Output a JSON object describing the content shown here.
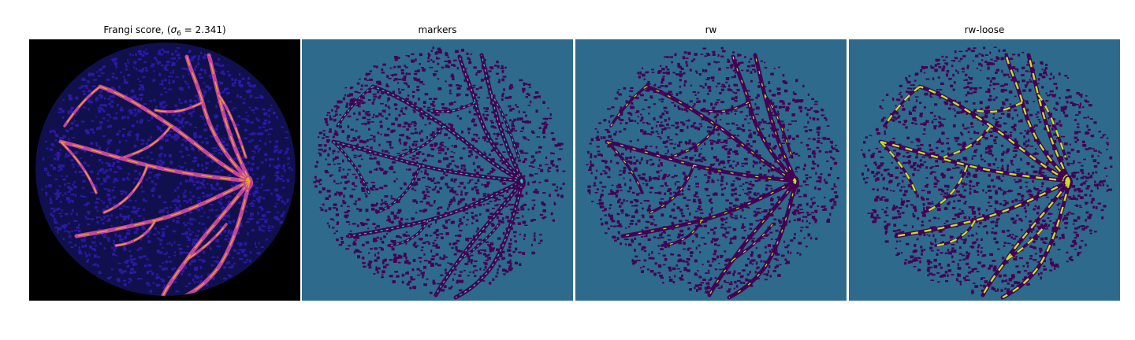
{
  "panels": [
    {
      "title_prefix": "Frangi score, (",
      "sigma_symbol": "σ",
      "sigma_sub": "6",
      "title_suffix": " = 2.341)",
      "colormap": "plasma",
      "colors": {
        "background": "#000000",
        "texture": "#2a1aa3",
        "vessel": "#c34796",
        "highlight": "#f0a030"
      }
    },
    {
      "title": "markers",
      "colormap": "viridis",
      "colors": {
        "background": "#2e6a8c",
        "texture": "#440154",
        "vessel": "#440154",
        "highlight": "#25d0b0"
      }
    },
    {
      "title": "rw",
      "colormap": "viridis",
      "colors": {
        "background": "#2e6a8c",
        "texture": "#440154",
        "vessel": "#440154",
        "highlight": "#c8e020"
      }
    },
    {
      "title": "rw-loose",
      "colormap": "viridis",
      "colors": {
        "background": "#2e6a8c",
        "texture": "#440154",
        "vessel": "#440154",
        "highlight": "#c8e020"
      }
    }
  ]
}
